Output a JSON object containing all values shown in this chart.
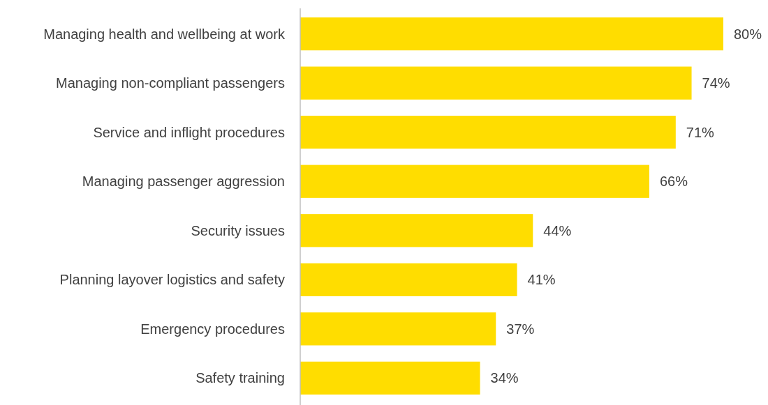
{
  "chart_data": {
    "type": "bar",
    "orientation": "horizontal",
    "categories": [
      "Managing health and wellbeing at work",
      "Managing non-compliant passengers",
      "Service and inflight procedures",
      "Managing passenger aggression",
      "Security issues",
      "Planning layover logistics and safety",
      "Emergency procedures",
      "Safety training"
    ],
    "values": [
      80,
      74,
      71,
      66,
      44,
      41,
      37,
      34
    ],
    "value_labels": [
      "80%",
      "74%",
      "71%",
      "66%",
      "44%",
      "41%",
      "37%",
      "34%"
    ],
    "color": "#ffdd00"
  }
}
